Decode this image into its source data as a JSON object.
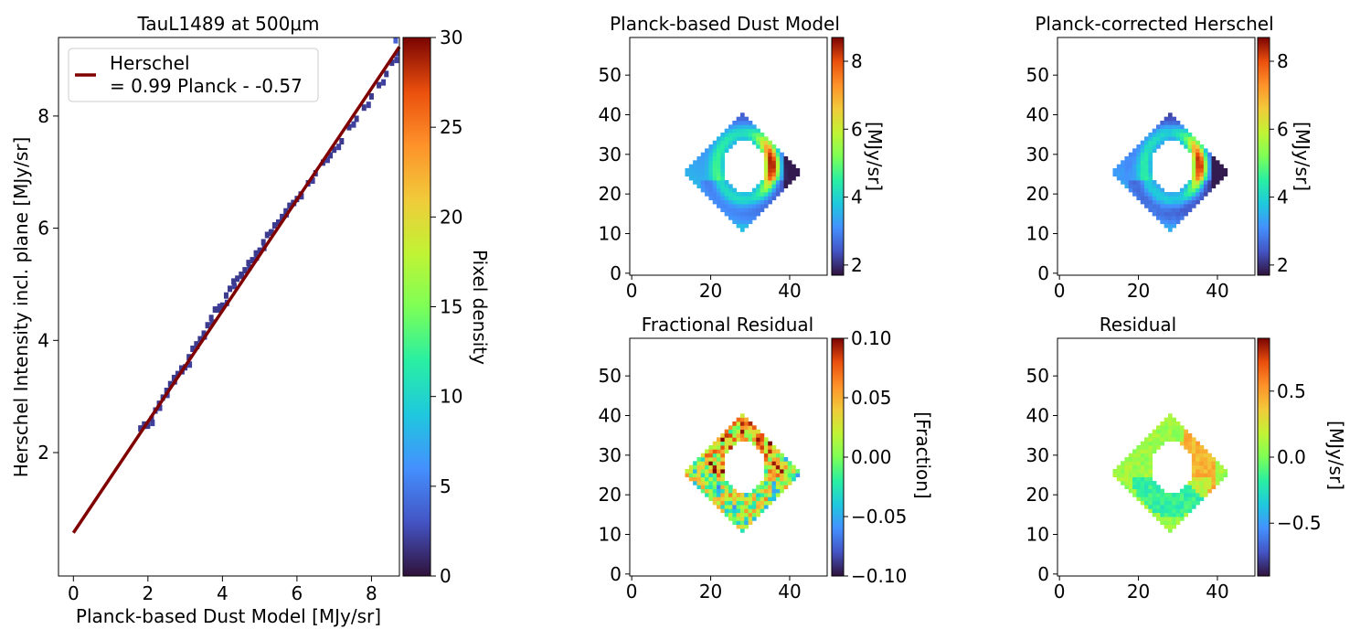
{
  "chart_data": [
    {
      "type": "heatmap",
      "title": "TauL1489 at 500μm",
      "xlabel": "Planck-based Dust Model [MJy/sr]",
      "ylabel": "Herschel Intensity incl. plane [MJy/sr]",
      "xlim": [
        -0.4,
        8.75
      ],
      "ylim": [
        -0.2,
        9.4
      ],
      "xticks": [
        "0",
        "2",
        "4",
        "6",
        "8"
      ],
      "yticks": [
        "2",
        "4",
        "6",
        "8"
      ],
      "fit": {
        "slope": 0.99,
        "intercept": 0.57,
        "x_range": [
          0,
          8.75
        ],
        "color": "#800000"
      },
      "legend": {
        "lines": [
          "Herschel",
          "= 0.99 Planck - -0.57"
        ],
        "position": "upper-left"
      },
      "colorbar": {
        "label": "Pixel density",
        "range": [
          0,
          30
        ],
        "ticks": [
          "0",
          "5",
          "10",
          "15",
          "20",
          "25",
          "30"
        ],
        "colormap": "turbo"
      },
      "cells": [
        [
          1.8,
          2.43
        ],
        [
          1.9,
          2.5
        ],
        [
          2.0,
          2.48
        ],
        [
          2.1,
          2.6
        ],
        [
          2.2,
          2.75
        ],
        [
          2.3,
          2.87
        ],
        [
          2.4,
          2.98
        ],
        [
          2.5,
          3.1
        ],
        [
          2.6,
          3.22
        ],
        [
          2.7,
          3.33
        ],
        [
          2.8,
          3.4
        ],
        [
          2.9,
          3.5
        ],
        [
          3.0,
          3.52
        ],
        [
          3.1,
          3.7
        ],
        [
          3.2,
          3.85
        ],
        [
          3.3,
          3.93
        ],
        [
          3.4,
          4.02
        ],
        [
          3.5,
          4.12
        ],
        [
          3.6,
          4.27
        ],
        [
          3.7,
          4.4
        ],
        [
          3.8,
          4.55
        ],
        [
          3.9,
          4.55
        ],
        [
          4.0,
          4.62
        ],
        [
          4.1,
          4.8
        ],
        [
          4.2,
          4.92
        ],
        [
          4.3,
          5.05
        ],
        [
          4.4,
          5.1
        ],
        [
          4.5,
          5.17
        ],
        [
          4.6,
          5.25
        ],
        [
          4.7,
          5.38
        ],
        [
          4.8,
          5.43
        ],
        [
          4.9,
          5.55
        ],
        [
          5.0,
          5.6
        ],
        [
          5.1,
          5.75
        ],
        [
          5.2,
          5.88
        ],
        [
          5.3,
          5.92
        ],
        [
          5.4,
          6.05
        ],
        [
          5.5,
          6.1
        ],
        [
          5.6,
          6.2
        ],
        [
          5.7,
          6.3
        ],
        [
          5.8,
          6.4
        ],
        [
          5.9,
          6.45
        ],
        [
          6.0,
          6.52
        ],
        [
          6.1,
          6.6
        ],
        [
          6.3,
          6.8
        ],
        [
          6.5,
          6.98
        ],
        [
          6.7,
          7.17
        ],
        [
          6.9,
          7.3
        ],
        [
          7.0,
          7.4
        ],
        [
          7.2,
          7.55
        ],
        [
          7.4,
          7.8
        ],
        [
          7.6,
          7.95
        ],
        [
          7.8,
          8.15
        ],
        [
          8.0,
          8.35
        ],
        [
          8.2,
          8.55
        ],
        [
          8.4,
          8.75
        ],
        [
          8.55,
          8.95
        ],
        [
          8.7,
          9.12
        ]
      ],
      "highlight_cells": [
        [
          8.65,
          9.35
        ]
      ]
    },
    {
      "type": "heatmap",
      "title": "Planck-based Dust Model",
      "xticks": [
        "0",
        "20",
        "40"
      ],
      "yticks": [
        "0",
        "10",
        "20",
        "30",
        "40",
        "50"
      ],
      "xlim": [
        -0.5,
        49.5
      ],
      "ylim": [
        -0.5,
        59.5
      ],
      "colorbar": {
        "label": "[MJy/sr]",
        "range": [
          1.7,
          8.7
        ],
        "ticks": [
          "2",
          "4",
          "6",
          "8"
        ],
        "colormap": "turbo"
      }
    },
    {
      "type": "heatmap",
      "title": "Planck-corrected Herschel",
      "xticks": [
        "0",
        "20",
        "40"
      ],
      "yticks": [
        "0",
        "10",
        "20",
        "30",
        "40",
        "50"
      ],
      "xlim": [
        -0.5,
        49.5
      ],
      "ylim": [
        -0.5,
        59.5
      ],
      "colorbar": {
        "label": "[MJy/sr]",
        "range": [
          1.7,
          8.7
        ],
        "ticks": [
          "2",
          "4",
          "6",
          "8"
        ],
        "colormap": "turbo"
      }
    },
    {
      "type": "heatmap",
      "title": "Fractional Residual",
      "xticks": [
        "0",
        "20",
        "40"
      ],
      "yticks": [
        "0",
        "10",
        "20",
        "30",
        "40",
        "50"
      ],
      "xlim": [
        -0.5,
        49.5
      ],
      "ylim": [
        -0.5,
        59.5
      ],
      "colorbar": {
        "label": "[Fraction]",
        "range": [
          -0.1,
          0.1
        ],
        "ticks": [
          "0.10",
          "0.05",
          "0.00",
          "−0.05",
          "−0.10"
        ],
        "colormap": "turbo"
      }
    },
    {
      "type": "heatmap",
      "title": "Residual",
      "xticks": [
        "0",
        "20",
        "40"
      ],
      "yticks": [
        "0",
        "10",
        "20",
        "30",
        "40",
        "50"
      ],
      "xlim": [
        -0.5,
        49.5
      ],
      "ylim": [
        -0.5,
        59.5
      ],
      "colorbar": {
        "label": "[MJy/sr]",
        "range": [
          -0.9,
          0.9
        ],
        "ticks": [
          "0.5",
          "0.0",
          "−0.5"
        ],
        "colormap": "turbo"
      }
    }
  ],
  "map_region": {
    "center": [
      28,
      25.5
    ],
    "half_diagonal": 14.5,
    "hole_center": [
      28.5,
      27
    ],
    "hole_radii": [
      5.2,
      6.3
    ]
  }
}
